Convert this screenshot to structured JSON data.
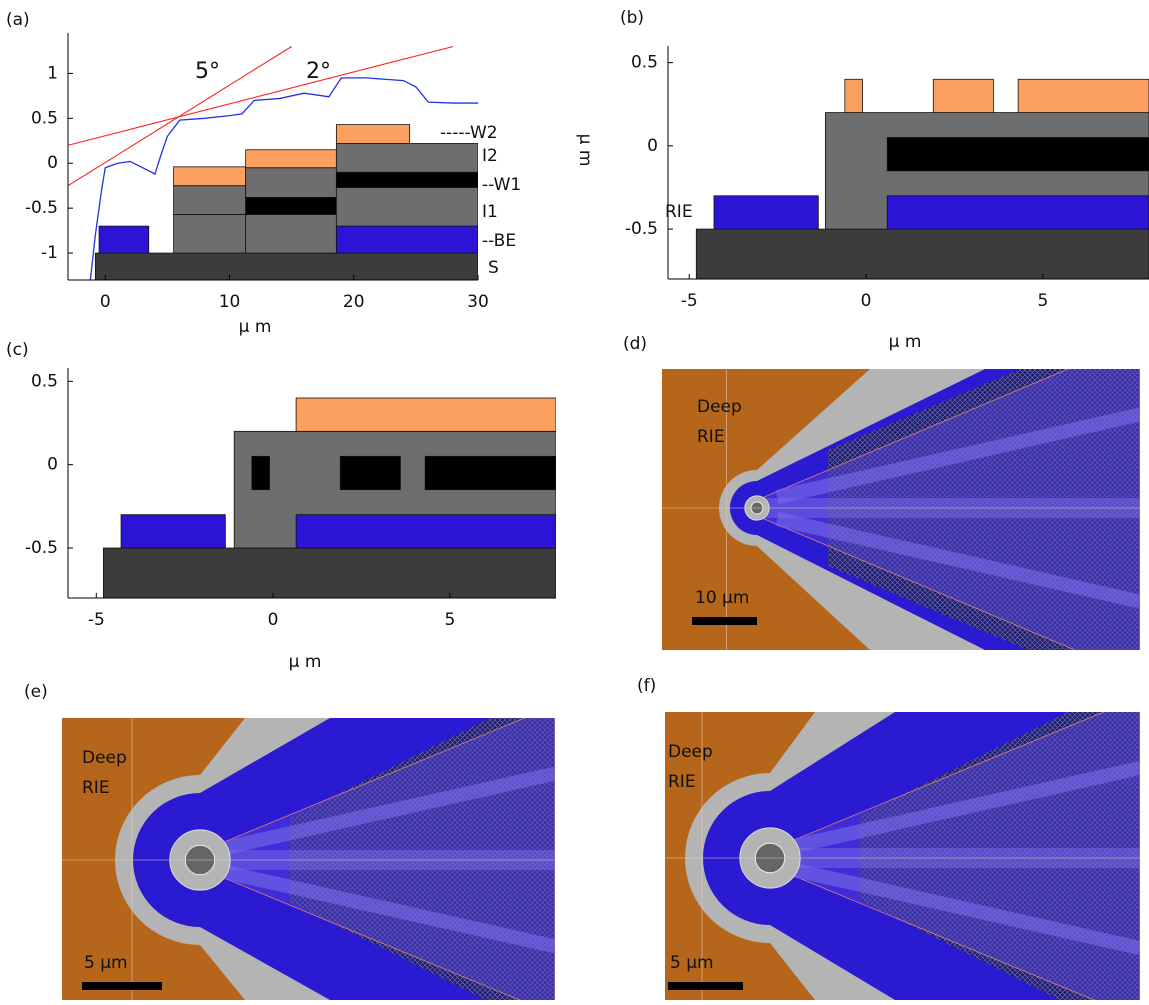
{
  "chart_data": [
    {
      "type": "cross-section",
      "label": "(a)",
      "xlabel": "μ m",
      "xlim": [
        -3,
        30
      ],
      "ylim": [
        -1.3,
        1.45
      ],
      "xticks": [
        0,
        10,
        20,
        30
      ],
      "yticks": [
        -1,
        -0.5,
        0,
        0.5,
        1
      ],
      "rects": [
        {
          "x": [
            -0.8,
            30
          ],
          "y": [
            -1.3,
            -1
          ],
          "color": "#3c3c3c"
        },
        {
          "x": [
            -0.5,
            3.5
          ],
          "y": [
            -1,
            -0.7
          ],
          "color": "#2b14d6"
        },
        {
          "x": [
            5.5,
            11.3
          ],
          "y": [
            -1,
            -0.57
          ],
          "color": "#6e6e6e"
        },
        {
          "x": [
            5.5,
            11.3
          ],
          "y": [
            -0.57,
            -0.25
          ],
          "color": "#6e6e6e"
        },
        {
          "x": [
            5.5,
            11.3
          ],
          "y": [
            -0.25,
            -0.04
          ],
          "color": "#fca060"
        },
        {
          "x": [
            11.3,
            18.6
          ],
          "y": [
            -1,
            -0.57
          ],
          "color": "#6e6e6e"
        },
        {
          "x": [
            11.3,
            18.6
          ],
          "y": [
            -0.57,
            -0.38
          ],
          "color": "#000000"
        },
        {
          "x": [
            11.3,
            18.6
          ],
          "y": [
            -0.38,
            -0.05
          ],
          "color": "#6e6e6e"
        },
        {
          "x": [
            11.3,
            18.6
          ],
          "y": [
            -0.05,
            0.15
          ],
          "color": "#fca060"
        },
        {
          "x": [
            18.6,
            30
          ],
          "y": [
            -1,
            -0.7
          ],
          "color": "#2b14d6"
        },
        {
          "x": [
            18.6,
            30
          ],
          "y": [
            -0.7,
            -0.27
          ],
          "color": "#6e6e6e"
        },
        {
          "x": [
            18.6,
            30
          ],
          "y": [
            -0.27,
            -0.1
          ],
          "color": "#000000"
        },
        {
          "x": [
            18.6,
            30
          ],
          "y": [
            -0.1,
            0.22
          ],
          "color": "#6e6e6e"
        },
        {
          "x": [
            18.6,
            24.5
          ],
          "y": [
            0.22,
            0.43
          ],
          "color": "#fca060"
        }
      ],
      "layer_labels": [
        "-----W2",
        "I2",
        "--W1",
        "I1",
        "--BE",
        "S"
      ],
      "series": [
        {
          "color": "#2233dd",
          "x": [
            -1.2,
            -0.8,
            -0.3,
            0,
            1,
            2,
            3,
            4,
            4.5,
            5,
            6,
            8,
            10,
            11,
            12,
            14,
            16,
            18,
            19,
            21,
            24,
            25,
            26,
            28,
            30
          ],
          "y": [
            -1.3,
            -0.8,
            -0.3,
            -0.05,
            0,
            0.02,
            -0.05,
            -0.12,
            0.1,
            0.3,
            0.48,
            0.5,
            0.53,
            0.55,
            0.7,
            0.72,
            0.78,
            0.74,
            0.95,
            0.95,
            0.92,
            0.85,
            0.68,
            0.67,
            0.67
          ]
        }
      ],
      "lines": [
        {
          "label": "5°",
          "color": "#ff2020",
          "x": [
            -3,
            15
          ],
          "y": [
            -0.25,
            1.3
          ]
        },
        {
          "label": "2°",
          "color": "#ff2020",
          "x": [
            -3,
            28
          ],
          "y": [
            0.2,
            1.3
          ]
        }
      ]
    },
    {
      "type": "cross-section",
      "label": "(b)",
      "xlabel": "μ m",
      "ylabel": "μ m",
      "xlim": [
        -5.6,
        8
      ],
      "ylim": [
        -0.8,
        0.6
      ],
      "xticks": [
        -5,
        0,
        5
      ],
      "yticks": [
        -0.5,
        0,
        0.5
      ],
      "rects": [
        {
          "x": [
            -4.8,
            8
          ],
          "y": [
            -0.8,
            -0.5
          ],
          "color": "#3c3c3c"
        },
        {
          "x": [
            -4.3,
            -1.35
          ],
          "y": [
            -0.5,
            -0.3
          ],
          "color": "#2b14d6"
        },
        {
          "x": [
            -1.15,
            8
          ],
          "y": [
            -0.5,
            0.2
          ],
          "color": "#6e6e6e"
        },
        {
          "x": [
            0.6,
            8
          ],
          "y": [
            -0.5,
            -0.3
          ],
          "color": "#2b14d6"
        },
        {
          "x": [
            0.6,
            8
          ],
          "y": [
            -0.15,
            0.05
          ],
          "color": "#000000"
        },
        {
          "x": [
            -0.6,
            -0.1
          ],
          "y": [
            0.2,
            0.4
          ],
          "color": "#fca060"
        },
        {
          "x": [
            1.9,
            3.6
          ],
          "y": [
            0.2,
            0.4
          ],
          "color": "#fca060"
        },
        {
          "x": [
            4.3,
            8
          ],
          "y": [
            0.2,
            0.4
          ],
          "color": "#fca060"
        }
      ],
      "layer_labels": [
        "RIE"
      ]
    },
    {
      "type": "cross-section",
      "label": "(c)",
      "xlabel": "μ m",
      "xlim": [
        -5.8,
        8
      ],
      "ylim": [
        -0.8,
        0.58
      ],
      "xticks": [
        -5,
        0,
        5
      ],
      "yticks": [
        -0.5,
        0,
        0.5
      ],
      "rects": [
        {
          "x": [
            -4.8,
            8
          ],
          "y": [
            -0.8,
            -0.5
          ],
          "color": "#3c3c3c"
        },
        {
          "x": [
            -4.3,
            -1.35
          ],
          "y": [
            -0.5,
            -0.3
          ],
          "color": "#2b14d6"
        },
        {
          "x": [
            -1.1,
            8
          ],
          "y": [
            -0.5,
            0.2
          ],
          "color": "#6e6e6e"
        },
        {
          "x": [
            0.65,
            8
          ],
          "y": [
            -0.5,
            -0.3
          ],
          "color": "#2b14d6"
        },
        {
          "x": [
            -0.6,
            -0.1
          ],
          "y": [
            -0.15,
            0.05
          ],
          "color": "#000000"
        },
        {
          "x": [
            1.9,
            3.6
          ],
          "y": [
            -0.15,
            0.05
          ],
          "color": "#000000"
        },
        {
          "x": [
            4.3,
            8
          ],
          "y": [
            -0.15,
            0.05
          ],
          "color": "#000000"
        },
        {
          "x": [
            0.65,
            8
          ],
          "y": [
            0.2,
            0.4
          ],
          "color": "#fca060"
        }
      ]
    }
  ],
  "layouts": [
    {
      "label": "(d)",
      "text": [
        "Deep",
        "RIE"
      ],
      "scale_bar": "10 μm"
    },
    {
      "label": "(e)",
      "text": [
        "Deep",
        "RIE"
      ],
      "scale_bar": "5 μm"
    },
    {
      "label": "(f)",
      "text": [
        "Deep",
        "RIE"
      ],
      "scale_bar": "5 μm"
    }
  ]
}
